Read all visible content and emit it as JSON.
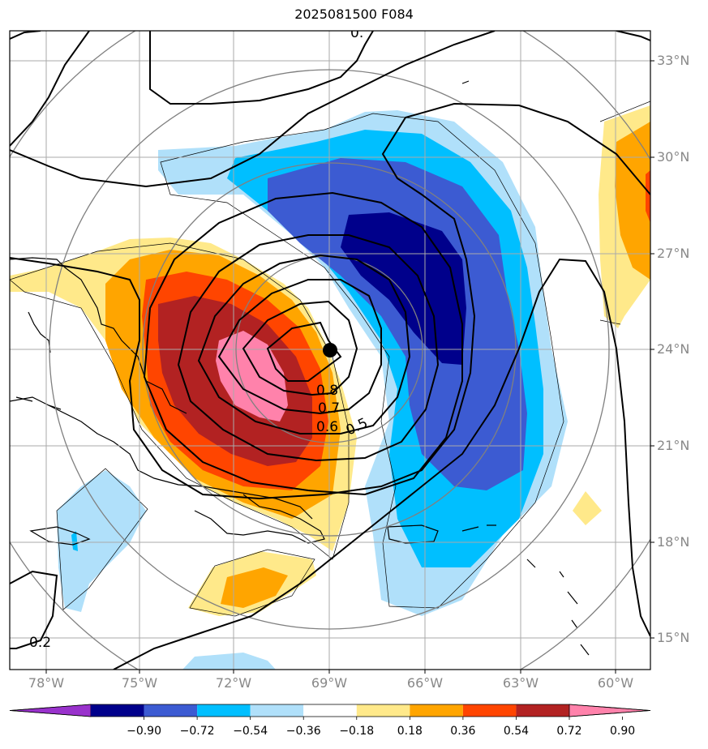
{
  "title": "2025081500 F084",
  "lat_labels": [
    "33°N",
    "30°N",
    "27°N",
    "24°N",
    "21°N",
    "18°N",
    "15°N"
  ],
  "lon_labels": [
    "78°W",
    "75°W",
    "72°W",
    "69°W",
    "66°W",
    "63°W",
    "60°W"
  ],
  "contour_labels": [
    "0.8",
    "0.7",
    "0.6",
    "0.5",
    "0.2"
  ],
  "colorbar": {
    "ticks": [
      "−0.90",
      "−0.72",
      "−0.54",
      "−0.36",
      "−0.18",
      "0.18",
      "0.36",
      "0.54",
      "0.72",
      "0.90"
    ],
    "colors": [
      "#9932cc",
      "#00008b",
      "#3c5bd2",
      "#00bfff",
      "#b0e0fa",
      "#ffffff",
      "#ffe98a",
      "#ffa500",
      "#ff4500",
      "#b22222",
      "#ff82ab"
    ]
  },
  "markers": [
    {
      "name": "storm-center",
      "color": "#000000"
    }
  ]
}
